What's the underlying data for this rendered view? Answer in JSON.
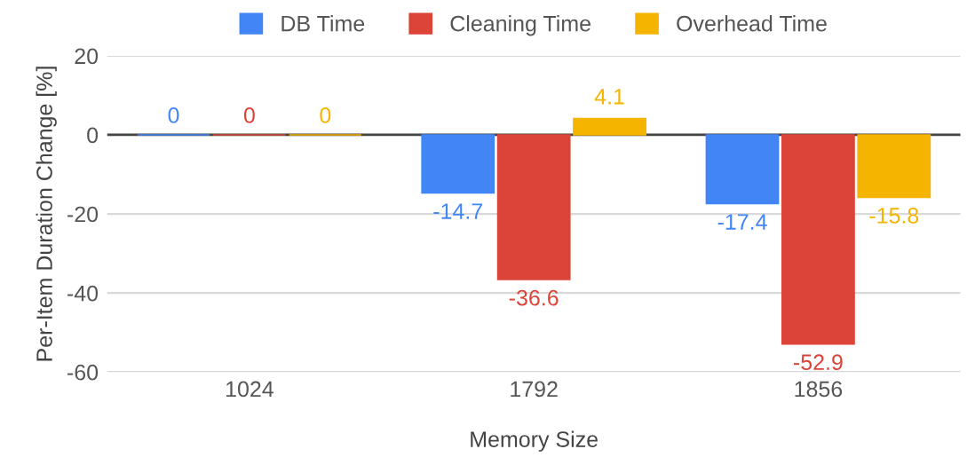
{
  "chart_data": {
    "type": "bar",
    "xlabel": "Memory Size",
    "ylabel": "Per-Item Duration Change [%]",
    "categories": [
      "1024",
      "1792",
      "1856"
    ],
    "series": [
      {
        "name": "DB Time",
        "color": "#4285f4",
        "values": [
          0,
          -14.7,
          -17.4
        ],
        "value_labels": [
          "0",
          "-14.7",
          "-17.4"
        ]
      },
      {
        "name": "Cleaning Time",
        "color": "#db4437",
        "values": [
          0,
          -36.6,
          -52.9
        ],
        "value_labels": [
          "0",
          "-36.6",
          "-52.9"
        ]
      },
      {
        "name": "Overhead Time",
        "color": "#f4b400",
        "values": [
          0,
          4.1,
          -15.8
        ],
        "value_labels": [
          "0",
          "4.1",
          "-15.8"
        ]
      }
    ],
    "ylim": [
      -60,
      20
    ],
    "yticks": [
      -60,
      -40,
      -20,
      0,
      20
    ],
    "grid": "y",
    "legend": "top"
  }
}
